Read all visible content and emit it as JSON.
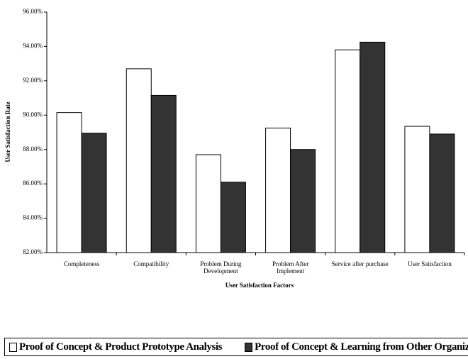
{
  "chart_data": {
    "type": "bar",
    "y_label": "User Satisfaction Rate",
    "x_label": "User Satisfaction Factors",
    "categories": [
      "Completeness",
      "Compatibility",
      "Problem During\nDevelopment",
      "Problem After\nImplement",
      "Service after purchase",
      "User Satisfaction"
    ],
    "series": [
      {
        "name": "Proof of Concept & Product Prototype Analysis",
        "color": "#ffffff",
        "values": [
          90.15,
          92.7,
          87.7,
          89.25,
          93.8,
          89.35
        ]
      },
      {
        "name": "Proof of Concept & Learning from Other Organization",
        "color": "#333333",
        "values": [
          88.95,
          91.15,
          86.1,
          88.0,
          94.25,
          88.9
        ]
      }
    ],
    "ylim": [
      82,
      96
    ],
    "yticks": [
      {
        "value": 82,
        "label": "82.00%"
      },
      {
        "value": 84,
        "label": "84.00%"
      },
      {
        "value": 86,
        "label": "86.00%"
      },
      {
        "value": 88,
        "label": "88.00%"
      },
      {
        "value": 90,
        "label": "90.00%"
      },
      {
        "value": 92,
        "label": "92.00%"
      },
      {
        "value": 94,
        "label": "94.00%"
      },
      {
        "value": 96,
        "label": "96.00%"
      }
    ]
  }
}
